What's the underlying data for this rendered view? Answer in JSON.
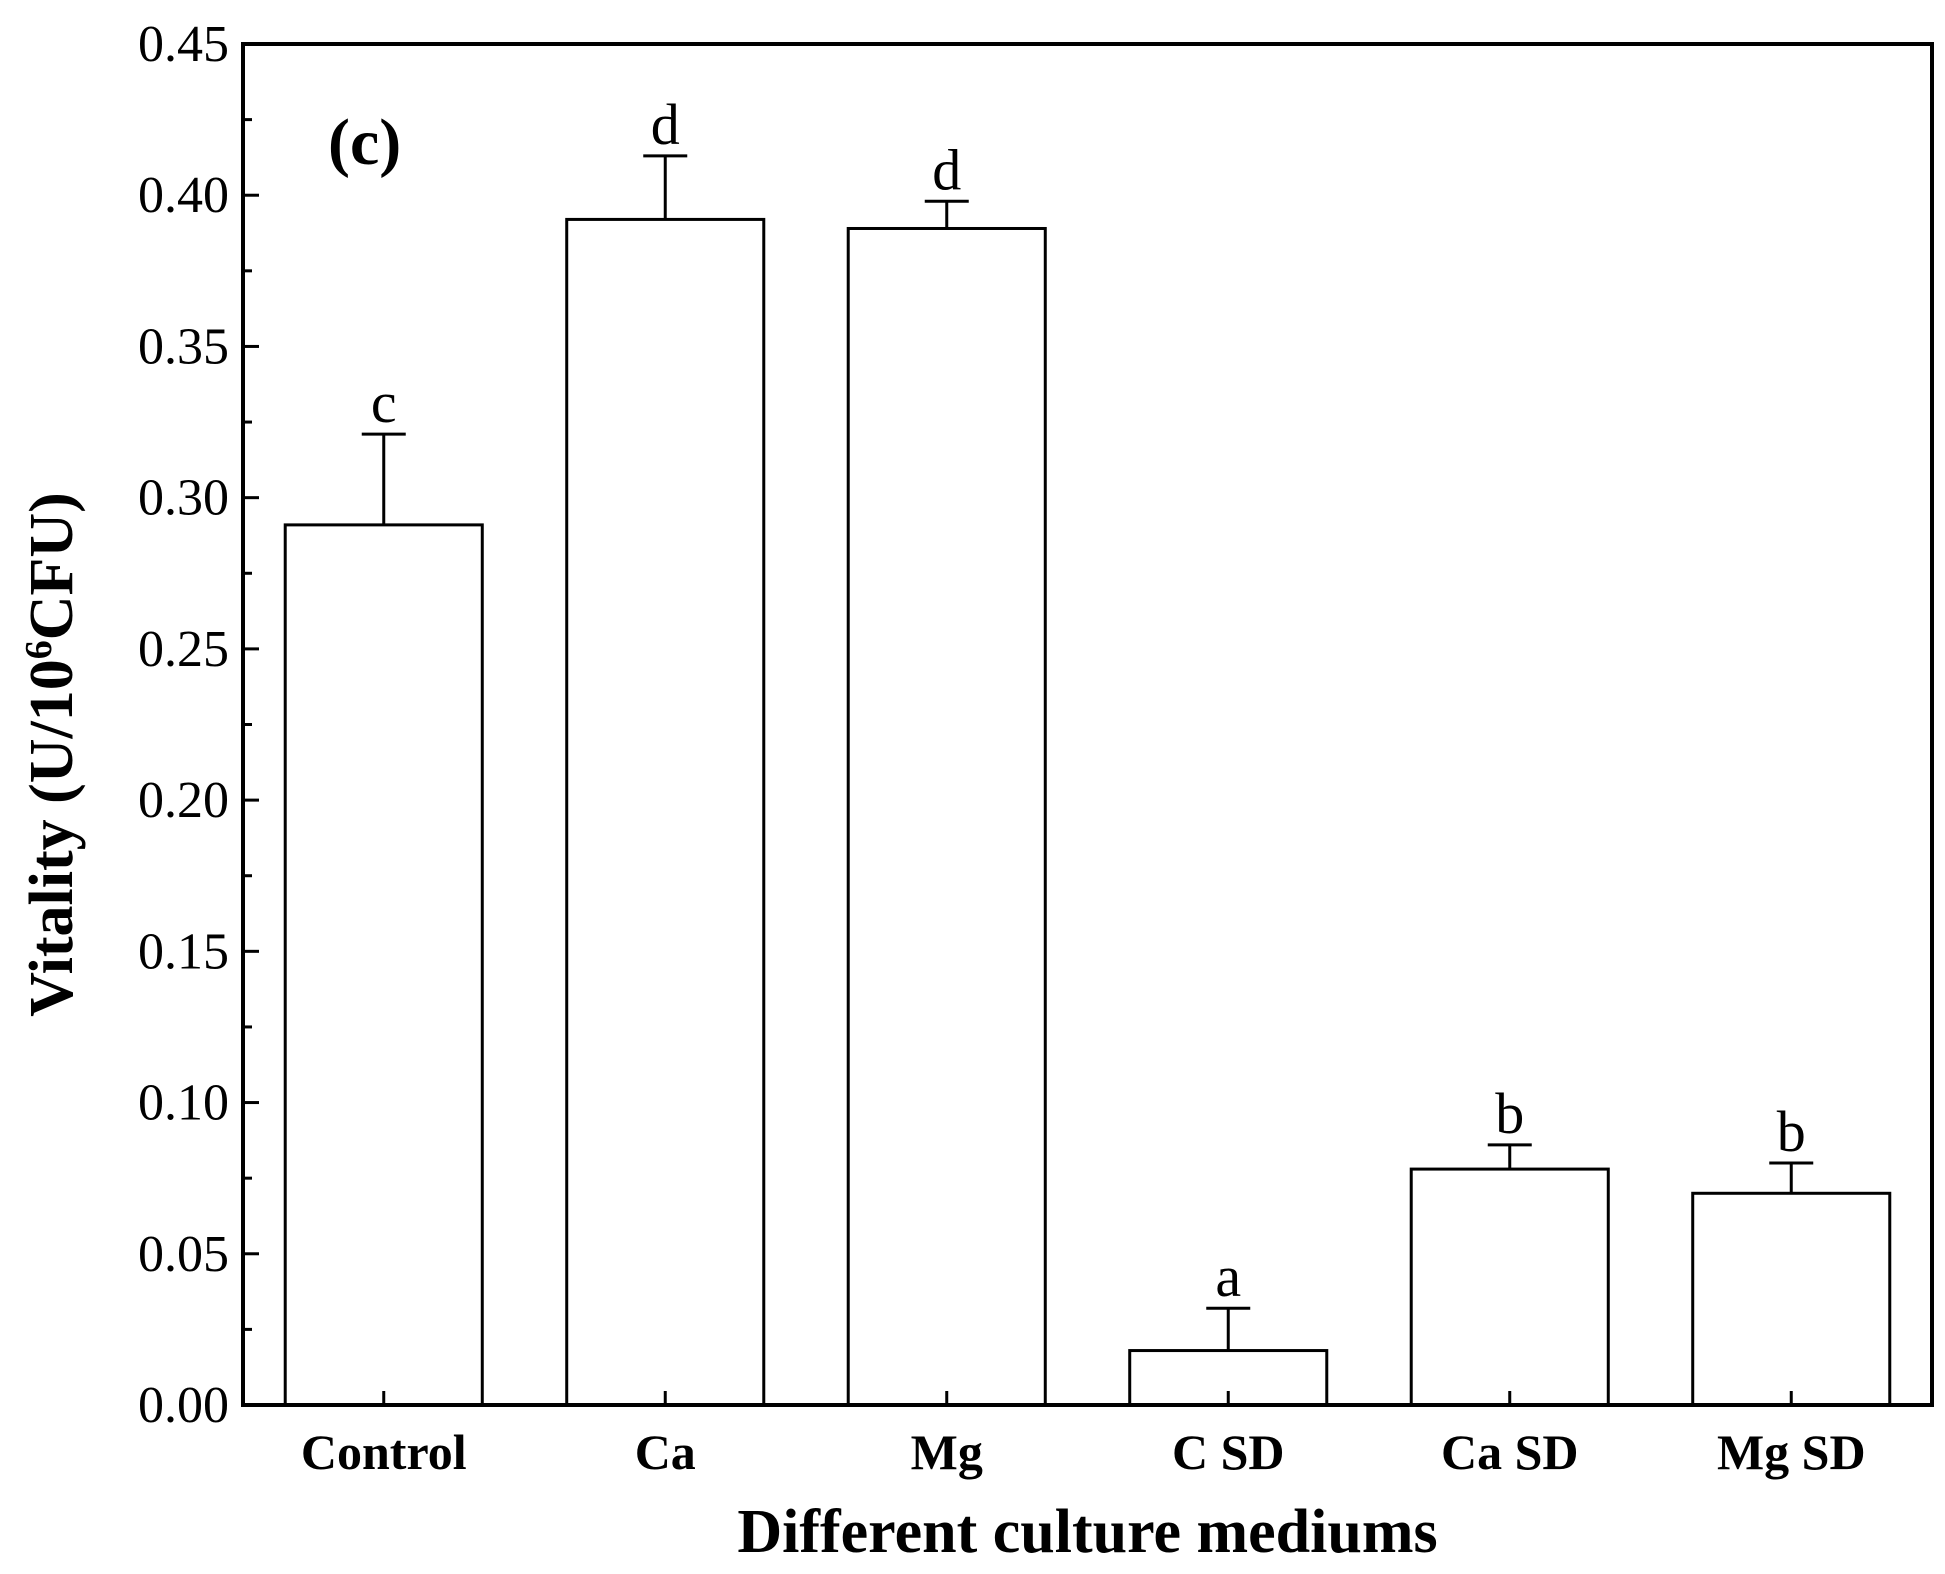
{
  "chart_data": {
    "type": "bar",
    "panel_label": "(c)",
    "categories": [
      "Control",
      "Ca",
      "Mg",
      "C SD",
      "Ca SD",
      "Mg SD"
    ],
    "values": [
      0.291,
      0.392,
      0.389,
      0.018,
      0.078,
      0.07
    ],
    "errors": [
      0.03,
      0.021,
      0.009,
      0.014,
      0.008,
      0.01
    ],
    "significance": [
      "c",
      "d",
      "d",
      "a",
      "b",
      "b"
    ],
    "xlabel": "Different culture mediums",
    "ylabel": {
      "prefix": "Vitality (U/10",
      "superscript": "6",
      "suffix": "CFU)"
    },
    "ylim": [
      0,
      0.45
    ],
    "yticks": [
      "0.00",
      "0.05",
      "0.10",
      "0.15",
      "0.20",
      "0.25",
      "0.30",
      "0.35",
      "0.40",
      "0.45"
    ],
    "bar_fill": "#ffffff",
    "bar_stroke": "#000000"
  }
}
